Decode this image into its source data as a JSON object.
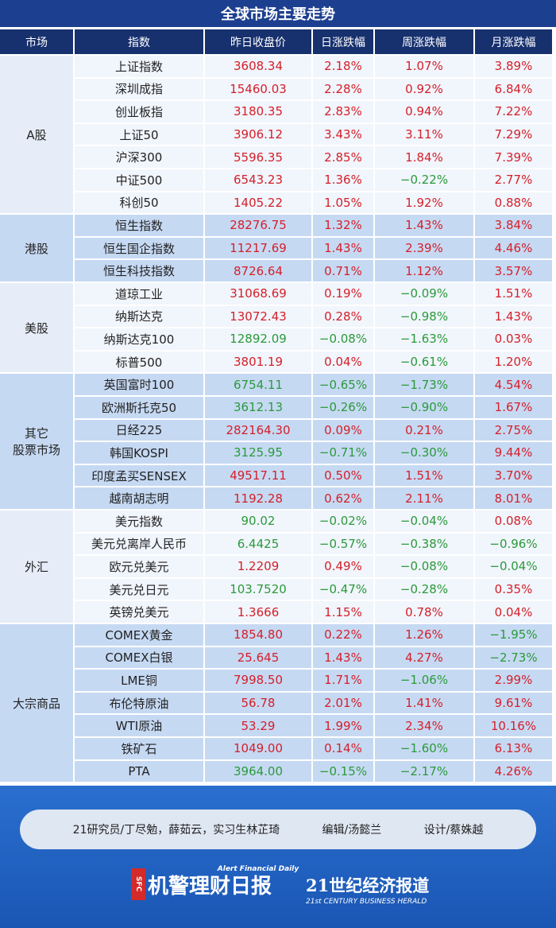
{
  "title": "全球市场主要走势",
  "table": {
    "header": [
      "市场",
      "指数",
      "昨日收盘价",
      "日涨跌幅",
      "周涨跌幅",
      "月涨跌幅"
    ],
    "groups": [
      {
        "market": "A股",
        "rows": [
          [
            "上证指数",
            "3608.34",
            "2.18%",
            "1.07%",
            "3.89%"
          ],
          [
            "深圳成指",
            "15460.03",
            "2.28%",
            "0.92%",
            "6.84%"
          ],
          [
            "创业板指",
            "3180.35",
            "2.83%",
            "0.94%",
            "7.22%"
          ],
          [
            "上证50",
            "3906.12",
            "3.43%",
            "3.11%",
            "7.29%"
          ],
          [
            "沪深300",
            "5596.35",
            "2.85%",
            "1.84%",
            "7.39%"
          ],
          [
            "中证500",
            "6543.23",
            "1.36%",
            "−0.22%",
            "2.77%"
          ],
          [
            "科创50",
            "1405.22",
            "1.05%",
            "1.92%",
            "0.88%"
          ]
        ]
      },
      {
        "market": "港股",
        "rows": [
          [
            "恒生指数",
            "28276.75",
            "1.32%",
            "1.43%",
            "3.84%"
          ],
          [
            "恒生国企指数",
            "11217.69",
            "1.43%",
            "2.39%",
            "4.46%"
          ],
          [
            "恒生科技指数",
            "8726.64",
            "0.71%",
            "1.12%",
            "3.57%"
          ]
        ]
      },
      {
        "market": "美股",
        "rows": [
          [
            "道琼工业",
            "31068.69",
            "0.19%",
            "−0.09%",
            "1.51%"
          ],
          [
            "纳斯达克",
            "13072.43",
            "0.28%",
            "−0.98%",
            "1.43%"
          ],
          [
            "纳斯达克100",
            "12892.09",
            "−0.08%",
            "−1.63%",
            "0.03%"
          ],
          [
            "标普500",
            "3801.19",
            "0.04%",
            "−0.61%",
            "1.20%"
          ]
        ]
      },
      {
        "market": "其它\n股票市场",
        "rows": [
          [
            "英国富时100",
            "6754.11",
            "−0.65%",
            "−1.73%",
            "4.54%"
          ],
          [
            "欧洲斯托克50",
            "3612.13",
            "−0.26%",
            "−0.90%",
            "1.67%"
          ],
          [
            "日经225",
            "282164.30",
            "0.09%",
            "0.21%",
            "2.75%"
          ],
          [
            "韩国KOSPI",
            "3125.95",
            "−0.71%",
            "−0.30%",
            "9.44%"
          ],
          [
            "印度孟买SENSEX",
            "49517.11",
            "0.50%",
            "1.51%",
            "3.70%"
          ],
          [
            "越南胡志明",
            "1192.28",
            "0.62%",
            "2.11%",
            "8.01%"
          ]
        ]
      },
      {
        "market": "外汇",
        "rows": [
          [
            "美元指数",
            "90.02",
            "−0.02%",
            "−0.04%",
            "0.08%"
          ],
          [
            "美元兑离岸人民币",
            "6.4425",
            "−0.57%",
            "−0.38%",
            "−0.96%"
          ],
          [
            "欧元兑美元",
            "1.2209",
            "0.49%",
            "−0.08%",
            "−0.04%"
          ],
          [
            "美元兑日元",
            "103.7520",
            "−0.47%",
            "−0.28%",
            "0.35%"
          ],
          [
            "英镑兑美元",
            "1.3666",
            "1.15%",
            "0.78%",
            "0.04%"
          ]
        ]
      },
      {
        "market": "大宗商品",
        "rows": [
          [
            "COMEX黄金",
            "1854.80",
            "0.22%",
            "1.26%",
            "−1.95%"
          ],
          [
            "COMEX白银",
            "25.645",
            "1.43%",
            "4.27%",
            "−2.73%"
          ],
          [
            "LME铜",
            "7998.50",
            "1.71%",
            "−1.06%",
            "2.99%"
          ],
          [
            "布伦特原油",
            "56.78",
            "2.01%",
            "1.41%",
            "9.61%"
          ],
          [
            "WTI原油",
            "53.29",
            "1.99%",
            "2.34%",
            "10.16%"
          ],
          [
            "铁矿石",
            "1049.00",
            "0.14%",
            "−1.60%",
            "6.13%"
          ],
          [
            "PTA",
            "3964.00",
            "−0.15%",
            "−2.17%",
            "4.26%"
          ]
        ]
      }
    ]
  },
  "footer": {
    "credits": [
      "21研究员/丁尽勉，薛茹云，实习生林芷琦",
      "编辑/汤懿兰",
      "设计/蔡姝越"
    ],
    "logo_left": {
      "badge": "SFC",
      "name": "机警理财日报",
      "tagline": "Alert Financial Daily"
    },
    "logo_right": {
      "name": "21世纪经济报道",
      "tagline": "21st CENTURY BUSINESS HERALD"
    }
  }
}
